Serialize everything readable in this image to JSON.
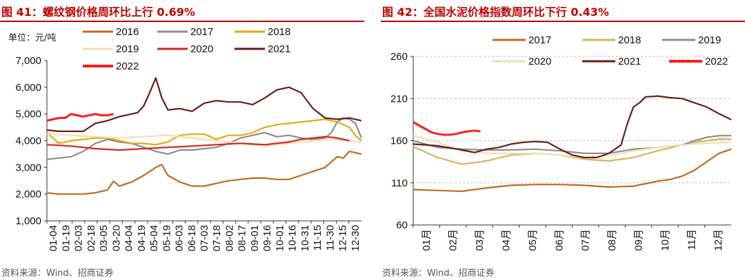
{
  "chart_left": {
    "title": "图 41：螺纹钢价格周环比上行 0.69%",
    "unit": "单位：元/吨",
    "source": "资料来源：Wind、招商证券",
    "chart_data": {
      "type": "line",
      "title": "图 41：螺纹钢价格周环比上行 0.69%",
      "ylabel": "单位：元/吨",
      "ylim": [
        1000,
        7000
      ],
      "yticks": [
        "1,000",
        "2,000",
        "3,000",
        "4,000",
        "5,000",
        "6,000",
        "7,000"
      ],
      "ytick_values": [
        1000,
        2000,
        3000,
        4000,
        5000,
        6000,
        7000
      ],
      "xmax": 52,
      "categories": [
        "01-04",
        "01-19",
        "02-03",
        "02-18",
        "03-05",
        "03-20",
        "04-04",
        "04-19",
        "05-04",
        "05-19",
        "06-03",
        "06-18",
        "07-03",
        "07-18",
        "08-02",
        "08-17",
        "09-01",
        "09-16",
        "10-01",
        "10-16",
        "10-31",
        "11-15",
        "11-30",
        "12-15",
        "12-30"
      ],
      "series": [
        {
          "name": "2016",
          "color": "#c2691c",
          "x": [
            0,
            2,
            4,
            6,
            8,
            10,
            11,
            12,
            13,
            14,
            16,
            18,
            19,
            20,
            22,
            24,
            26,
            28,
            30,
            32,
            34,
            36,
            38,
            40,
            42,
            44,
            46,
            47,
            48,
            49,
            50,
            51,
            52
          ],
          "values": [
            2050,
            2000,
            2000,
            2000,
            2050,
            2150,
            2480,
            2300,
            2380,
            2450,
            2700,
            3000,
            3100,
            2700,
            2450,
            2300,
            2300,
            2400,
            2500,
            2550,
            2600,
            2600,
            2550,
            2550,
            2700,
            2850,
            3000,
            3200,
            3400,
            3350,
            3600,
            3550,
            3500
          ]
        },
        {
          "name": "2017",
          "color": "#8c8c8c",
          "x": [
            0,
            2,
            4,
            6,
            8,
            10,
            12,
            14,
            16,
            18,
            20,
            22,
            24,
            26,
            28,
            30,
            32,
            34,
            36,
            38,
            40,
            42,
            44,
            46,
            47,
            48,
            49,
            50,
            51,
            52
          ],
          "values": [
            3300,
            3350,
            3400,
            3600,
            3900,
            4050,
            3950,
            3900,
            3750,
            3600,
            3500,
            3650,
            3650,
            3700,
            3750,
            3900,
            4100,
            4200,
            4300,
            4150,
            4200,
            4100,
            4050,
            4100,
            4300,
            4700,
            4850,
            4800,
            4650,
            4100
          ]
        },
        {
          "name": "2018",
          "color": "#e0ab0a",
          "x": [
            0,
            1,
            2,
            4,
            6,
            8,
            10,
            12,
            14,
            16,
            18,
            20,
            22,
            24,
            26,
            28,
            30,
            32,
            34,
            36,
            38,
            40,
            42,
            44,
            46,
            48,
            50,
            51,
            52
          ],
          "values": [
            4300,
            4100,
            3900,
            4000,
            4050,
            4100,
            4100,
            4000,
            3900,
            3900,
            3850,
            3950,
            4200,
            4250,
            4250,
            4050,
            4200,
            4200,
            4300,
            4500,
            4600,
            4650,
            4700,
            4750,
            4800,
            4700,
            4500,
            4200,
            4000
          ]
        },
        {
          "name": "2019",
          "color": "#f5dcb0",
          "x": [
            0,
            4,
            8,
            12,
            16,
            20,
            24,
            28,
            32,
            36,
            40,
            44,
            48,
            50,
            52
          ],
          "values": [
            4250,
            4200,
            4150,
            4100,
            4150,
            4200,
            4100,
            4000,
            3900,
            3800,
            3900,
            4000,
            4050,
            4000,
            3950
          ]
        },
        {
          "name": "2020",
          "color": "#d4251e",
          "x": [
            0,
            4,
            8,
            12,
            16,
            20,
            24,
            28,
            32,
            36,
            40,
            42,
            44,
            46,
            48,
            50
          ],
          "values": [
            3850,
            3800,
            3700,
            3650,
            3700,
            3750,
            3800,
            3850,
            3900,
            3850,
            3950,
            4050,
            4100,
            4150,
            4100,
            4000
          ]
        },
        {
          "name": "2021",
          "color": "#6b1a1a",
          "x": [
            0,
            2,
            4,
            6,
            8,
            10,
            12,
            13,
            14,
            15,
            16,
            17,
            18,
            19,
            20,
            22,
            24,
            26,
            28,
            30,
            32,
            34,
            36,
            38,
            40,
            42,
            44,
            46,
            48,
            50,
            52
          ],
          "values": [
            4400,
            4350,
            4350,
            4350,
            4650,
            4750,
            4900,
            4950,
            5000,
            5050,
            5300,
            5800,
            6350,
            5600,
            5150,
            5200,
            5100,
            5400,
            5500,
            5450,
            5450,
            5350,
            5600,
            5900,
            6000,
            5800,
            5200,
            4850,
            4800,
            4850,
            4750
          ]
        },
        {
          "name": "2022",
          "color": "#ff1a1a",
          "x": [
            0,
            1,
            2,
            3,
            4,
            5,
            6,
            7,
            8,
            9,
            10,
            11
          ],
          "values": [
            4750,
            4800,
            4850,
            4850,
            5000,
            4950,
            4900,
            4950,
            5000,
            4950,
            4950,
            5000
          ]
        }
      ]
    }
  },
  "chart_right": {
    "title": "图 42：全国水泥价格指数周环比下行 0.43%",
    "source": "资料来源：Wind、招商证券",
    "chart_data": {
      "type": "line",
      "title": "图 42：全国水泥价格指数周环比下行 0.43%",
      "ylabel": "",
      "ylim": [
        60,
        260
      ],
      "yticks": [
        "60",
        "110",
        "160",
        "210",
        "260"
      ],
      "ytick_values": [
        60,
        110,
        160,
        210,
        260
      ],
      "xmax": 52,
      "categories": [
        "01月",
        "02月",
        "03月",
        "04月",
        "05月",
        "06月",
        "07月",
        "08月",
        "09月",
        "10月",
        "11月",
        "12月"
      ],
      "series": [
        {
          "name": "2017",
          "color": "#c2691c",
          "x": [
            0,
            4,
            8,
            12,
            16,
            20,
            24,
            28,
            32,
            36,
            38,
            40,
            42,
            44,
            46,
            48,
            50,
            52
          ],
          "values": [
            102,
            101,
            100,
            104,
            107,
            108,
            108,
            107,
            105,
            106,
            109,
            112,
            114,
            118,
            125,
            135,
            145,
            150
          ]
        },
        {
          "name": "2018",
          "color": "#d9b25c",
          "x": [
            0,
            4,
            8,
            12,
            16,
            20,
            24,
            28,
            32,
            36,
            40,
            44,
            46,
            48,
            50,
            52
          ],
          "values": [
            153,
            140,
            132,
            136,
            143,
            145,
            143,
            138,
            136,
            140,
            148,
            155,
            158,
            160,
            162,
            162
          ]
        },
        {
          "name": "2019",
          "color": "#8c8c8c",
          "x": [
            0,
            4,
            8,
            12,
            16,
            20,
            24,
            28,
            32,
            36,
            40,
            44,
            46,
            48,
            50,
            52
          ],
          "values": [
            160,
            152,
            150,
            149,
            149,
            150,
            148,
            145,
            145,
            150,
            152,
            155,
            160,
            164,
            166,
            166
          ]
        },
        {
          "name": "2020",
          "color": "#f2dfb6",
          "x": [
            0,
            4,
            8,
            12,
            16,
            20,
            24,
            28,
            32,
            36,
            40,
            44,
            48,
            52
          ],
          "values": [
            166,
            158,
            148,
            145,
            145,
            145,
            143,
            140,
            142,
            148,
            152,
            155,
            157,
            158
          ]
        },
        {
          "name": "2021",
          "color": "#6b1a1a",
          "x": [
            0,
            4,
            8,
            10,
            12,
            14,
            16,
            18,
            20,
            22,
            24,
            26,
            28,
            30,
            32,
            33,
            34,
            35,
            36,
            37,
            38,
            40,
            42,
            44,
            46,
            48,
            50,
            52
          ],
          "values": [
            156,
            154,
            149,
            146,
            150,
            152,
            156,
            158,
            159,
            158,
            150,
            143,
            140,
            140,
            145,
            150,
            155,
            180,
            200,
            205,
            212,
            213,
            211,
            210,
            205,
            200,
            192,
            185
          ]
        },
        {
          "name": "2022",
          "color": "#ff1a1a",
          "x": [
            0,
            1,
            2,
            3,
            4,
            5,
            6,
            7,
            8,
            9,
            10,
            11
          ],
          "values": [
            182,
            178,
            174,
            170,
            168,
            167,
            167,
            168,
            170,
            171,
            172,
            171
          ]
        }
      ]
    }
  }
}
